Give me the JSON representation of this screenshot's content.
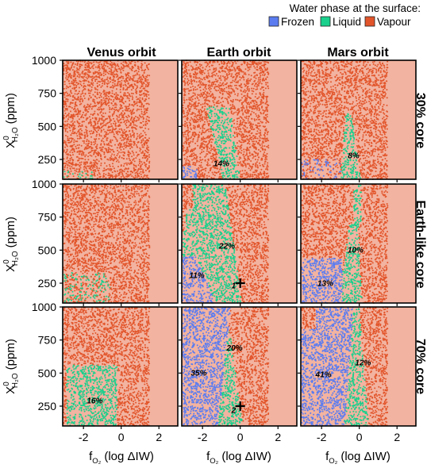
{
  "legend": {
    "title": "Water phase at the surface:",
    "entries": [
      {
        "label": "Frozen",
        "color": "#5b7cf0"
      },
      {
        "label": "Liquid",
        "color": "#19d08c"
      },
      {
        "label": "Vapour",
        "color": "#e2552b"
      }
    ]
  },
  "colors": {
    "region_bg": "#f2b3a0",
    "frozen": "#5b7cf0",
    "liquid": "#19d08c",
    "vapour": "#e2552b"
  },
  "columns": [
    "Venus orbit",
    "Earth orbit",
    "Mars orbit"
  ],
  "rows": [
    "30% core",
    "Earth-like core",
    "70% core"
  ],
  "y_axis": {
    "label": "X",
    "label_sup": "0",
    "label_sub": "H₂O",
    "label_unit": "(ppm)",
    "ticks": [
      "1000",
      "750",
      "500",
      "250"
    ]
  },
  "x_axis": {
    "label": "f",
    "label_sub": "O₂",
    "label_rest": "(log ΔIW)",
    "ticks": [
      "-2",
      "0",
      "2"
    ]
  },
  "chart_data": {
    "type": "scatter",
    "xlim": [
      -3.1,
      3.0
    ],
    "ylim": [
      100,
      1000
    ],
    "yticks": [
      250,
      500,
      750,
      1000
    ],
    "xticks": [
      -2,
      0,
      2
    ],
    "sampling_xmax": 1.5,
    "panels": [
      {
        "row": 0,
        "col": 0,
        "labels": []
      },
      {
        "row": 0,
        "col": 1,
        "labels": [
          {
            "text": "14%",
            "x": -1.0,
            "y": 200
          }
        ]
      },
      {
        "row": 0,
        "col": 2,
        "labels": [
          {
            "text": "8%",
            "x": -0.3,
            "y": 260
          }
        ]
      },
      {
        "row": 1,
        "col": 0,
        "labels": []
      },
      {
        "row": 1,
        "col": 1,
        "labels": [
          {
            "text": "22%",
            "x": -0.7,
            "y": 510
          },
          {
            "text": "11%",
            "x": -2.3,
            "y": 290
          },
          {
            "text": "1",
            "x": -0.35,
            "y": 210
          }
        ],
        "marker": {
          "x": 0.0,
          "y": 250
        }
      },
      {
        "row": 1,
        "col": 2,
        "labels": [
          {
            "text": "10%",
            "x": -0.2,
            "y": 480
          },
          {
            "text": "13%",
            "x": -1.8,
            "y": 230
          }
        ]
      },
      {
        "row": 2,
        "col": 0,
        "labels": [
          {
            "text": "16%",
            "x": -1.4,
            "y": 270
          }
        ]
      },
      {
        "row": 2,
        "col": 1,
        "labels": [
          {
            "text": "20%",
            "x": -0.3,
            "y": 670
          },
          {
            "text": "35%",
            "x": -2.2,
            "y": 480
          },
          {
            "text": "2",
            "x": -0.35,
            "y": 200
          }
        ],
        "marker": {
          "x": 0.0,
          "y": 250
        }
      },
      {
        "row": 2,
        "col": 2,
        "labels": [
          {
            "text": "41%",
            "x": -1.9,
            "y": 470
          },
          {
            "text": "12%",
            "x": 0.2,
            "y": 560
          }
        ]
      }
    ]
  }
}
